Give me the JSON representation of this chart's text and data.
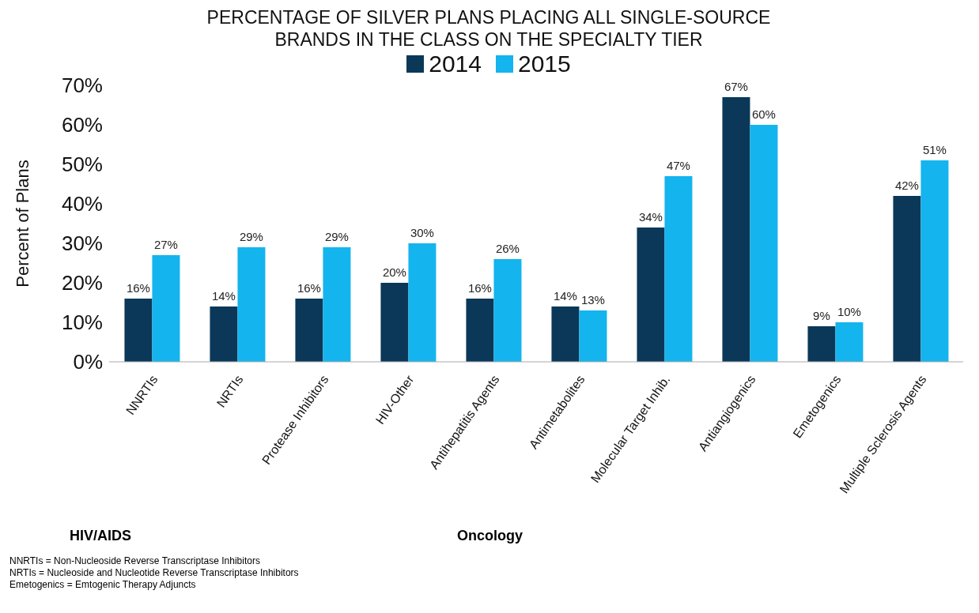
{
  "chart_data": {
    "type": "bar",
    "title": "PERCENTAGE OF SILVER PLANS PLACING ALL SINGLE-SOURCE\nBRANDS IN THE CLASS ON THE SPECIALTY TIER",
    "ylabel": "Percent of Plans",
    "categories": [
      "NNRTIs",
      "NRTIs",
      "Protease Inhibitors",
      "HIV-Other",
      "Antihepatitis Agents",
      "Antimetabolites",
      "Molecular Target Inhib.",
      "Antiangiogenics",
      "Emetogenics",
      "Multiple Sclerosis Agents"
    ],
    "series": [
      {
        "name": "2014",
        "color": "#0b3858",
        "values": [
          16,
          14,
          16,
          20,
          16,
          14,
          34,
          67,
          9,
          42
        ],
        "value_labels": [
          "16%",
          "14%",
          "16%",
          "20%",
          "16%",
          "14%",
          "34%",
          "67%",
          "9%",
          "42%"
        ]
      },
      {
        "name": "2015",
        "color": "#14b4ee",
        "values": [
          27,
          29,
          29,
          30,
          26,
          13,
          47,
          60,
          10,
          51
        ],
        "value_labels": [
          "27%",
          "29%",
          "29%",
          "30%",
          "26%",
          "13%",
          "47%",
          "60%",
          "10%",
          "51%"
        ]
      }
    ],
    "ylim": [
      0,
      70
    ],
    "yticks": [
      {
        "value": 0,
        "label": "0%"
      },
      {
        "value": 10,
        "label": "10%"
      },
      {
        "value": 20,
        "label": "20%"
      },
      {
        "value": 30,
        "label": "30%"
      },
      {
        "value": 40,
        "label": "40%"
      },
      {
        "value": 50,
        "label": "50%"
      },
      {
        "value": 60,
        "label": "60%"
      },
      {
        "value": 70,
        "label": "70%"
      }
    ],
    "grid": false,
    "legend": "top",
    "annotations": [
      "HIV/AIDS",
      "Oncology",
      "NNRTIs = Non-Nucleoside Reverse Transcriptase Inhibitors",
      "NRTIs = Nucleoside and Nucleotide Reverse Transcriptase Inhibitors",
      "Emetogenics = Emtogenic Therapy Adjuncts"
    ]
  }
}
